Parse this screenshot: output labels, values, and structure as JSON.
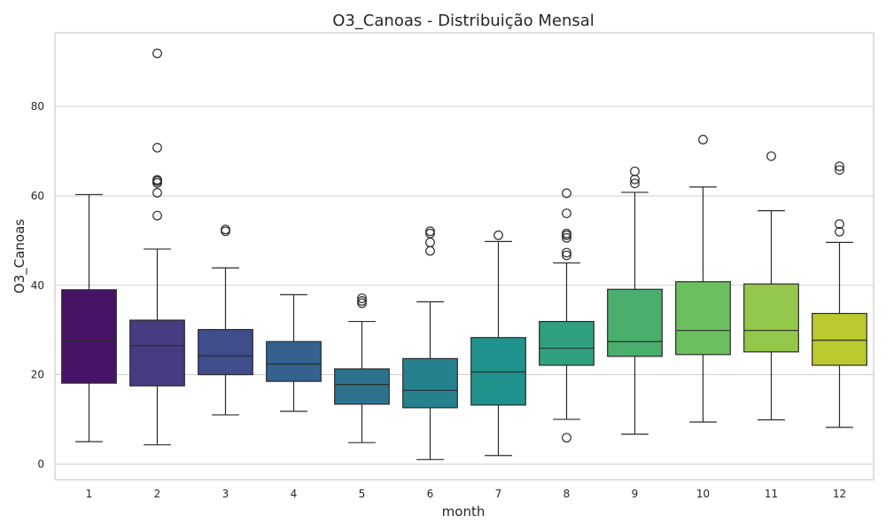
{
  "chart_data": {
    "type": "box",
    "title": "O3_Canoas - Distribuição Mensal",
    "xlabel": "month",
    "ylabel": "O3_Canoas",
    "ylim": [
      -3.5,
      96.5
    ],
    "yticks": [
      0,
      20,
      40,
      60,
      80
    ],
    "grid": true,
    "palette": "viridis",
    "categories": [
      "1",
      "2",
      "3",
      "4",
      "5",
      "6",
      "7",
      "8",
      "9",
      "10",
      "11",
      "12"
    ],
    "boxes": [
      {
        "month": "1",
        "whisker_low": 5.0,
        "q1": 18.1,
        "median": 27.7,
        "q3": 39.0,
        "whisker_high": 60.3,
        "outliers": [],
        "color": "#471366"
      },
      {
        "month": "2",
        "whisker_low": 4.3,
        "q1": 17.5,
        "median": 26.5,
        "q3": 32.2,
        "whisker_high": 48.1,
        "outliers": [
          55.6,
          60.7,
          62.9,
          63.3,
          63.6,
          70.8,
          91.9
        ],
        "color": "#473a80"
      },
      {
        "month": "3",
        "whisker_low": 11.0,
        "q1": 20.0,
        "median": 24.2,
        "q3": 30.1,
        "whisker_high": 43.9,
        "outliers": [
          52.1,
          52.5
        ],
        "color": "#3f4e8a"
      },
      {
        "month": "4",
        "whisker_low": 11.8,
        "q1": 18.5,
        "median": 22.4,
        "q3": 27.4,
        "whisker_high": 37.9,
        "outliers": [],
        "color": "#34618d"
      },
      {
        "month": "5",
        "whisker_low": 4.8,
        "q1": 13.4,
        "median": 17.8,
        "q3": 21.3,
        "whisker_high": 31.9,
        "outliers": [
          36.0,
          36.5,
          37.1
        ],
        "color": "#2c728e"
      },
      {
        "month": "6",
        "whisker_low": 1.0,
        "q1": 12.6,
        "median": 16.5,
        "q3": 23.6,
        "whisker_high": 36.3,
        "outliers": [
          47.7,
          49.6,
          51.6,
          52.1
        ],
        "color": "#26818e"
      },
      {
        "month": "7",
        "whisker_low": 1.9,
        "q1": 13.2,
        "median": 20.6,
        "q3": 28.3,
        "whisker_high": 49.8,
        "outliers": [
          51.2
        ],
        "color": "#20928c"
      },
      {
        "month": "8",
        "whisker_low": 10.0,
        "q1": 22.1,
        "median": 25.9,
        "q3": 31.9,
        "whisker_high": 45.0,
        "outliers": [
          5.9,
          46.7,
          47.3,
          50.6,
          51.2,
          51.6,
          56.1,
          60.6
        ],
        "color": "#30a17f"
      },
      {
        "month": "9",
        "whisker_low": 6.7,
        "q1": 24.1,
        "median": 27.4,
        "q3": 39.1,
        "whisker_high": 60.8,
        "outliers": [
          62.8,
          63.7,
          65.5
        ],
        "color": "#4aae6e"
      },
      {
        "month": "10",
        "whisker_low": 9.4,
        "q1": 24.5,
        "median": 29.9,
        "q3": 40.8,
        "whisker_high": 62.0,
        "outliers": [
          72.6
        ],
        "color": "#6cbf5f"
      },
      {
        "month": "11",
        "whisker_low": 9.9,
        "q1": 25.1,
        "median": 29.9,
        "q3": 40.3,
        "whisker_high": 56.7,
        "outliers": [
          68.9
        ],
        "color": "#93c74a"
      },
      {
        "month": "12",
        "whisker_low": 8.2,
        "q1": 22.1,
        "median": 27.7,
        "q3": 33.7,
        "whisker_high": 49.6,
        "outliers": [
          52.0,
          53.7,
          65.8,
          66.6
        ],
        "color": "#bbc92f"
      }
    ]
  }
}
